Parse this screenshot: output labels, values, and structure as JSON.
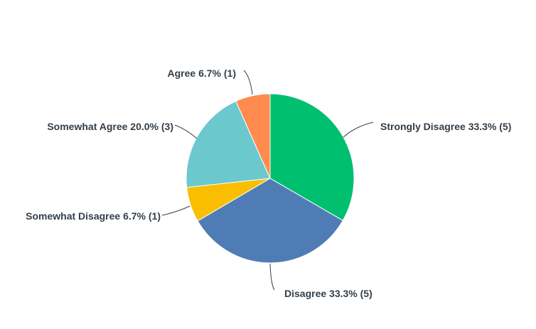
{
  "chart_data": {
    "type": "pie",
    "title": "",
    "start_angle": "12 o'clock",
    "direction": "clockwise",
    "slices": [
      {
        "label": "Strongly Disagree",
        "percent": 33.3,
        "count": 5,
        "color": "#00BF6F",
        "text": "Strongly Disagree 33.3% (5)"
      },
      {
        "label": "Disagree",
        "percent": 33.3,
        "count": 5,
        "color": "#507CB6",
        "text": "Disagree 33.3% (5)"
      },
      {
        "label": "Somewhat Disagree",
        "percent": 6.7,
        "count": 1,
        "color": "#F9BE00",
        "text": "Somewhat Disagree 6.7% (1)"
      },
      {
        "label": "Somewhat Agree",
        "percent": 20.0,
        "count": 3,
        "color": "#6BC8CD",
        "text": "Somewhat Agree 20.0% (3)"
      },
      {
        "label": "Agree",
        "percent": 6.7,
        "count": 1,
        "color": "#FF8B4F",
        "text": "Agree 6.7% (1)"
      }
    ]
  }
}
